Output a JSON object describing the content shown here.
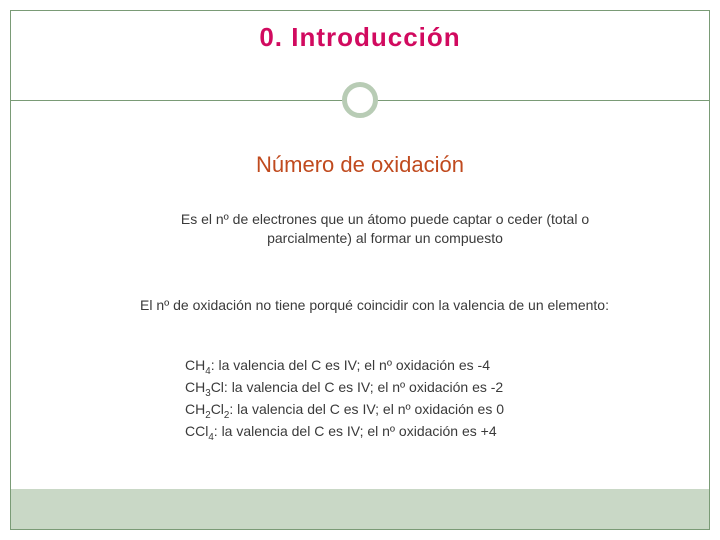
{
  "colors": {
    "frame_border": "#7a9b76",
    "circle_border": "#b8ccb5",
    "title_color": "#d10a5f",
    "subtitle_color": "#c04a1e",
    "body_text": "#3a3a3a",
    "footer_band": "#c9d8c6",
    "background": "#ffffff"
  },
  "typography": {
    "title_font": "Comic Sans MS",
    "title_size_pt": 20,
    "subtitle_font": "Verdana",
    "subtitle_size_pt": 17,
    "body_font": "Verdana",
    "body_size_pt": 11
  },
  "title": "0. Introducción",
  "subtitle": "Número de oxidación",
  "definition": "Es el nº de electrones que un átomo puede captar o ceder (total o parcialmente) al formar un compuesto",
  "note": "El nº de oxidación no tiene porqué coincidir con la valencia de un elemento:",
  "examples": [
    {
      "formula_html": "CH<sub>4</sub>",
      "rest": ": la valencia del C es IV; el nº oxidación es -4"
    },
    {
      "formula_html": "CH<sub>3</sub>Cl",
      "rest": ": la valencia del C es IV; el nº oxidación es -2"
    },
    {
      "formula_html": "CH<sub>2</sub>Cl<sub>2</sub>",
      "rest": ": la valencia del C es IV; el nº oxidación es 0"
    },
    {
      "formula_html": "CCl<sub>4</sub>",
      "rest": ": la valencia del C es IV; el nº oxidación es +4"
    }
  ]
}
